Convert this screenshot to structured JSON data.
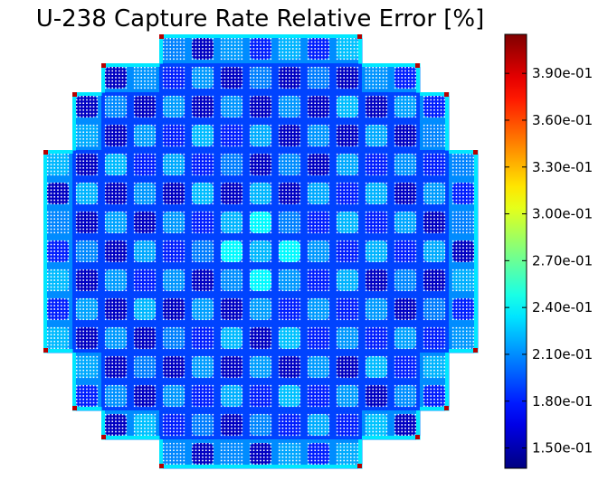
{
  "chart_data": {
    "type": "heatmap",
    "title": "U-238 Capture Rate Relative Error [%]",
    "xlabel": "",
    "ylabel": "",
    "grid": false,
    "colormap": "jet",
    "colorbar": {
      "min": 0.137,
      "max": 0.415,
      "ticks": [
        0.15,
        0.18,
        0.21,
        0.24,
        0.27,
        0.3,
        0.33,
        0.36,
        0.39
      ],
      "tick_labels": [
        "1.50e-01",
        "1.80e-01",
        "2.10e-01",
        "2.40e-01",
        "2.70e-01",
        "3.00e-01",
        "3.30e-01",
        "3.60e-01",
        "3.90e-01"
      ]
    },
    "core": {
      "assembly_grid": 15,
      "pins_per_side": 17,
      "row_extents": [
        [
          4,
          10
        ],
        [
          2,
          12
        ],
        [
          1,
          13
        ],
        [
          1,
          13
        ],
        [
          0,
          14
        ],
        [
          0,
          14
        ],
        [
          0,
          14
        ],
        [
          0,
          14
        ],
        [
          0,
          14
        ],
        [
          0,
          14
        ],
        [
          0,
          14
        ],
        [
          1,
          13
        ],
        [
          1,
          13
        ],
        [
          2,
          12
        ],
        [
          4,
          10
        ]
      ],
      "background_value": 0.19,
      "edge_value": 0.235,
      "corner_value": 0.4,
      "dark_assembly_value": 0.155,
      "light_assembly_value": 0.225,
      "center_light_value": 0.24,
      "guide_tube_value": 0.225
    }
  }
}
